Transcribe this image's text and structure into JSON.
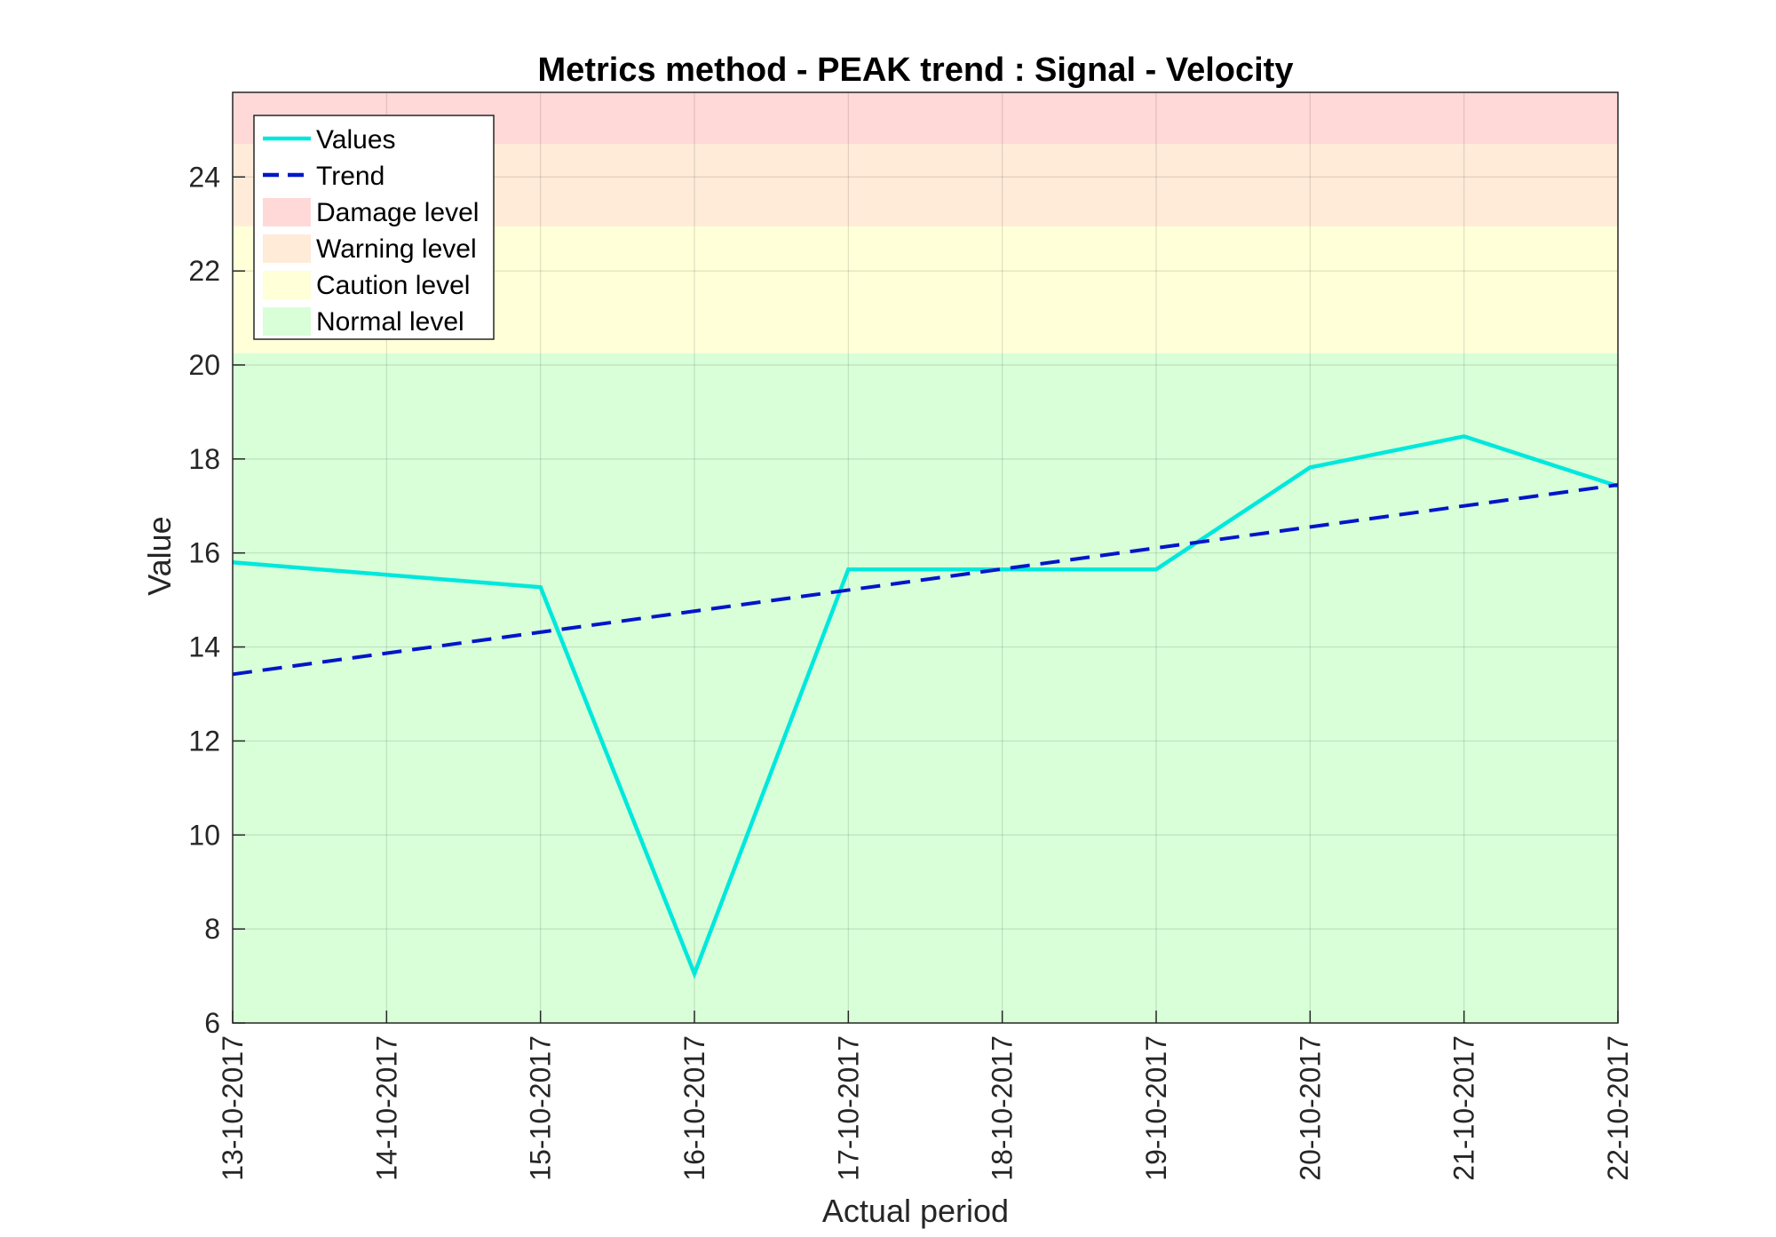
{
  "chart_data": {
    "type": "line",
    "title": "Metrics method - PEAK trend : Signal - Velocity",
    "xlabel": "Actual period",
    "ylabel": "Value",
    "categories": [
      "13-10-2017",
      "14-10-2017",
      "15-10-2017",
      "16-10-2017",
      "17-10-2017",
      "18-10-2017",
      "19-10-2017",
      "20-10-2017",
      "21-10-2017",
      "22-10-2017"
    ],
    "ylim": [
      6,
      25.8
    ],
    "yticks": [
      6,
      8,
      10,
      12,
      14,
      16,
      18,
      20,
      22,
      24
    ],
    "grid": true,
    "legend_position": "top-left",
    "series": [
      {
        "name": "Values",
        "style": "solid",
        "color": "#00e8dc",
        "points": [
          {
            "x": "13-10-2017",
            "y": 15.8
          },
          {
            "x": "15-10-2017",
            "y": 15.27
          },
          {
            "x": "16-10-2017",
            "y": 7.05
          },
          {
            "x": "17-10-2017",
            "y": 15.65
          },
          {
            "x": "18-10-2017",
            "y": 15.65
          },
          {
            "x": "19-10-2017",
            "y": 15.65
          },
          {
            "x": "20-10-2017",
            "y": 17.82
          },
          {
            "x": "21-10-2017",
            "y": 18.48
          },
          {
            "x": "22-10-2017",
            "y": 17.42
          }
        ]
      },
      {
        "name": "Trend",
        "style": "dashed",
        "color": "#0016c8",
        "points": [
          {
            "x": "13-10-2017",
            "y": 13.42
          },
          {
            "x": "22-10-2017",
            "y": 17.45
          }
        ]
      }
    ],
    "bands": [
      {
        "name": "Damage level",
        "from": 24.7,
        "to": 25.8,
        "color": "#ffd8d8"
      },
      {
        "name": "Warning level",
        "from": 22.95,
        "to": 24.7,
        "color": "#ffebd8"
      },
      {
        "name": "Caution level",
        "from": 20.25,
        "to": 22.95,
        "color": "#ffffd8"
      },
      {
        "name": "Normal level",
        "from": 6,
        "to": 20.25,
        "color": "#d8ffd8"
      }
    ]
  }
}
